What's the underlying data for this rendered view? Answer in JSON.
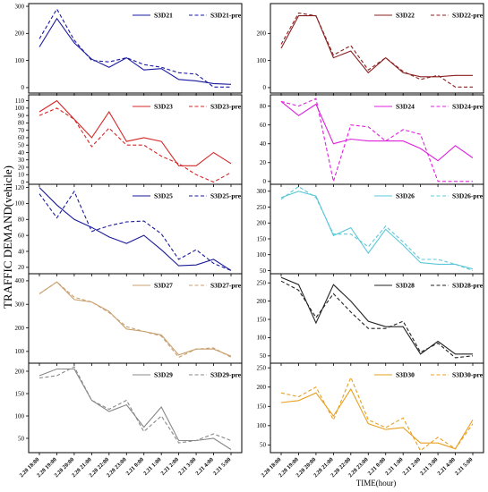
{
  "figure": {
    "ylabel": "TRAFFIC DEMAND(vehicle)",
    "xlabel": "TIME(hour)"
  },
  "chart_data": [
    {
      "type": "line",
      "legend_position": "top-right",
      "grid": false,
      "x": [
        "2.20 18:00",
        "2.20 19:00",
        "2.20 20:00",
        "2.20 21:00",
        "2.20 22:00",
        "2.20 23:00",
        "2.21 0:00",
        "2.21 1:00",
        "2.21 2:00",
        "2.21 3:00",
        "2.21 4:00",
        "2.21 5:00"
      ],
      "yticks": [
        0,
        100,
        200,
        300
      ],
      "ylim": [
        -20,
        310
      ],
      "color": "#1a1aa0",
      "series": [
        {
          "name": "S3D21",
          "style": "solid",
          "values": [
            150,
            255,
            165,
            105,
            75,
            110,
            65,
            70,
            30,
            25,
            15,
            12
          ]
        },
        {
          "name": "S3D21-pre",
          "style": "dashed",
          "values": [
            180,
            290,
            175,
            100,
            95,
            110,
            85,
            75,
            55,
            50,
            2,
            2
          ]
        }
      ]
    },
    {
      "type": "line",
      "legend_position": "top-right",
      "grid": false,
      "x": [
        "2.20 18:00",
        "2.20 19:00",
        "2.20 20:00",
        "2.20 21:00",
        "2.20 22:00",
        "2.20 23:00",
        "2.21 0:00",
        "2.21 1:00",
        "2.21 2:00",
        "2.21 3:00",
        "2.21 4:00",
        "2.21 5:00"
      ],
      "yticks": [
        0,
        100,
        200
      ],
      "ylim": [
        -20,
        310
      ],
      "color": "#8b2020",
      "series": [
        {
          "name": "S3D22",
          "style": "solid",
          "values": [
            145,
            265,
            265,
            110,
            135,
            55,
            110,
            55,
            40,
            40,
            45,
            45
          ]
        },
        {
          "name": "S3D22-pre",
          "style": "dashed",
          "values": [
            160,
            275,
            265,
            120,
            155,
            65,
            110,
            60,
            30,
            45,
            2,
            2
          ]
        }
      ]
    },
    {
      "type": "line",
      "legend_position": "top-right",
      "grid": false,
      "x": [
        "2.20 18:00",
        "2.20 19:00",
        "2.20 20:00",
        "2.20 21:00",
        "2.20 22:00",
        "2.20 23:00",
        "2.21 0:00",
        "2.21 1:00",
        "2.21 2:00",
        "2.21 3:00",
        "2.21 4:00",
        "2.21 5:00"
      ],
      "yticks": [
        0,
        10,
        20,
        30,
        40,
        50,
        60,
        70,
        80,
        90,
        100,
        110
      ],
      "ylim": [
        -3,
        118
      ],
      "color": "#d62728",
      "series": [
        {
          "name": "S3D23",
          "style": "solid",
          "values": [
            95,
            110,
            85,
            60,
            95,
            55,
            60,
            55,
            22,
            22,
            40,
            25
          ]
        },
        {
          "name": "S3D23-pre",
          "style": "dashed",
          "values": [
            90,
            100,
            85,
            48,
            73,
            50,
            50,
            35,
            25,
            10,
            0,
            13
          ]
        }
      ]
    },
    {
      "type": "line",
      "legend_position": "top-right",
      "grid": false,
      "x": [
        "2.20 18:00",
        "2.20 19:00",
        "2.20 20:00",
        "2.20 21:00",
        "2.20 22:00",
        "2.20 23:00",
        "2.21 0:00",
        "2.21 1:00",
        "2.21 2:00",
        "2.21 3:00",
        "2.21 4:00",
        "2.21 5:00"
      ],
      "yticks": [
        0,
        20,
        40,
        60,
        80
      ],
      "ylim": [
        -3,
        92
      ],
      "color": "#dd22dd",
      "series": [
        {
          "name": "S3D24",
          "style": "solid",
          "values": [
            85,
            70,
            82,
            40,
            45,
            43,
            43,
            43,
            35,
            22,
            38,
            25
          ]
        },
        {
          "name": "S3D24-pre",
          "style": "dashed",
          "values": [
            85,
            80,
            88,
            0,
            60,
            58,
            43,
            55,
            50,
            0,
            0,
            0
          ]
        }
      ]
    },
    {
      "type": "line",
      "legend_position": "top-right",
      "grid": false,
      "x": [
        "2.20 18:00",
        "2.20 19:00",
        "2.20 20:00",
        "2.20 21:00",
        "2.20 22:00",
        "2.20 23:00",
        "2.21 0:00",
        "2.21 1:00",
        "2.21 2:00",
        "2.21 3:00",
        "2.21 4:00",
        "2.21 5:00"
      ],
      "yticks": [
        20,
        40,
        60,
        80,
        100,
        120
      ],
      "ylim": [
        12,
        124
      ],
      "color": "#1a1a9a",
      "series": [
        {
          "name": "S3D25",
          "style": "solid",
          "values": [
            120,
            98,
            80,
            70,
            58,
            50,
            60,
            42,
            22,
            23,
            30,
            16
          ]
        },
        {
          "name": "S3D25-pre",
          "style": "dashed",
          "values": [
            112,
            82,
            115,
            65,
            72,
            77,
            78,
            62,
            30,
            42,
            25,
            16
          ]
        }
      ]
    },
    {
      "type": "line",
      "legend_position": "top-right",
      "grid": false,
      "x": [
        "2.20 18:00",
        "2.20 19:00",
        "2.20 20:00",
        "2.20 21:00",
        "2.20 22:00",
        "2.20 23:00",
        "2.21 0:00",
        "2.21 1:00",
        "2.21 2:00",
        "2.21 3:00",
        "2.21 4:00",
        "2.21 5:00"
      ],
      "yticks": [
        50,
        100,
        150,
        200,
        250,
        300
      ],
      "ylim": [
        40,
        322
      ],
      "color": "#5cc8d8",
      "series": [
        {
          "name": "S3D26",
          "style": "solid",
          "values": [
            280,
            300,
            285,
            160,
            185,
            105,
            180,
            130,
            75,
            70,
            70,
            55
          ]
        },
        {
          "name": "S3D26-pre",
          "style": "dashed",
          "values": [
            275,
            315,
            280,
            165,
            165,
            125,
            190,
            140,
            85,
            85,
            70,
            50
          ]
        }
      ]
    },
    {
      "type": "line",
      "legend_position": "top-right",
      "grid": false,
      "x": [
        "2.20 18:00",
        "2.20 19:00",
        "2.20 20:00",
        "2.20 21:00",
        "2.20 22:00",
        "2.20 23:00",
        "2.21 0:00",
        "2.21 1:00",
        "2.21 2:00",
        "2.21 3:00",
        "2.21 4:00",
        "2.21 5:00"
      ],
      "yticks": [
        100,
        200,
        300,
        400
      ],
      "ylim": [
        50,
        430
      ],
      "color": "#c8a070",
      "series": [
        {
          "name": "S3D27",
          "style": "solid",
          "values": [
            345,
            395,
            320,
            310,
            270,
            195,
            185,
            170,
            85,
            110,
            110,
            80
          ]
        },
        {
          "name": "S3D27-pre",
          "style": "dashed",
          "values": [
            345,
            395,
            330,
            310,
            265,
            205,
            185,
            165,
            75,
            110,
            115,
            75
          ]
        }
      ]
    },
    {
      "type": "line",
      "legend_position": "top-right",
      "grid": false,
      "x": [
        "2.20 18:00",
        "2.20 19:00",
        "2.20 20:00",
        "2.20 21:00",
        "2.20 22:00",
        "2.20 23:00",
        "2.21 0:00",
        "2.21 1:00",
        "2.21 2:00",
        "2.21 3:00",
        "2.21 4:00",
        "2.21 5:00"
      ],
      "yticks": [
        50,
        100,
        150,
        200,
        250
      ],
      "ylim": [
        30,
        275
      ],
      "color": "#222222",
      "series": [
        {
          "name": "S3D28",
          "style": "solid",
          "values": [
            265,
            245,
            140,
            245,
            200,
            145,
            130,
            130,
            55,
            90,
            55,
            55
          ]
        },
        {
          "name": "S3D28-pre",
          "style": "dashed",
          "values": [
            255,
            230,
            155,
            220,
            170,
            125,
            125,
            145,
            60,
            85,
            45,
            50
          ]
        }
      ]
    },
    {
      "type": "line",
      "legend_position": "top-right",
      "grid": false,
      "x": [
        "2.20 18:00",
        "2.20 19:00",
        "2.20 20:00",
        "2.20 21:00",
        "2.20 22:00",
        "2.20 23:00",
        "2.21 0:00",
        "2.21 1:00",
        "2.21 2:00",
        "2.21 3:00",
        "2.21 4:00",
        "2.21 5:00"
      ],
      "yticks": [
        50,
        100,
        150,
        200
      ],
      "ylim": [
        18,
        218
      ],
      "color": "#888888",
      "series": [
        {
          "name": "S3D29",
          "style": "solid",
          "values": [
            190,
            205,
            205,
            135,
            110,
            125,
            75,
            120,
            45,
            45,
            50,
            25
          ]
        },
        {
          "name": "S3D29-pre",
          "style": "dashed",
          "values": [
            185,
            190,
            210,
            135,
            115,
            135,
            65,
            100,
            40,
            45,
            60,
            45
          ]
        }
      ]
    },
    {
      "type": "line",
      "legend_position": "top-right",
      "grid": false,
      "x": [
        "2.20 18:00",
        "2.20 19:00",
        "2.20 20:00",
        "2.20 21:00",
        "2.20 22:00",
        "2.20 23:00",
        "2.21 0:00",
        "2.21 1:00",
        "2.21 2:00",
        "2.21 3:00",
        "2.21 4:00",
        "2.21 5:00"
      ],
      "yticks": [
        50,
        100,
        150,
        200,
        250
      ],
      "ylim": [
        30,
        262
      ],
      "color": "#e8a020",
      "series": [
        {
          "name": "S3D30",
          "style": "solid",
          "values": [
            160,
            165,
            185,
            125,
            195,
            105,
            90,
            95,
            55,
            55,
            40,
            115
          ]
        },
        {
          "name": "S3D30-pre",
          "style": "dashed",
          "values": [
            185,
            175,
            200,
            115,
            225,
            115,
            95,
            120,
            35,
            70,
            40,
            105
          ]
        }
      ]
    }
  ]
}
